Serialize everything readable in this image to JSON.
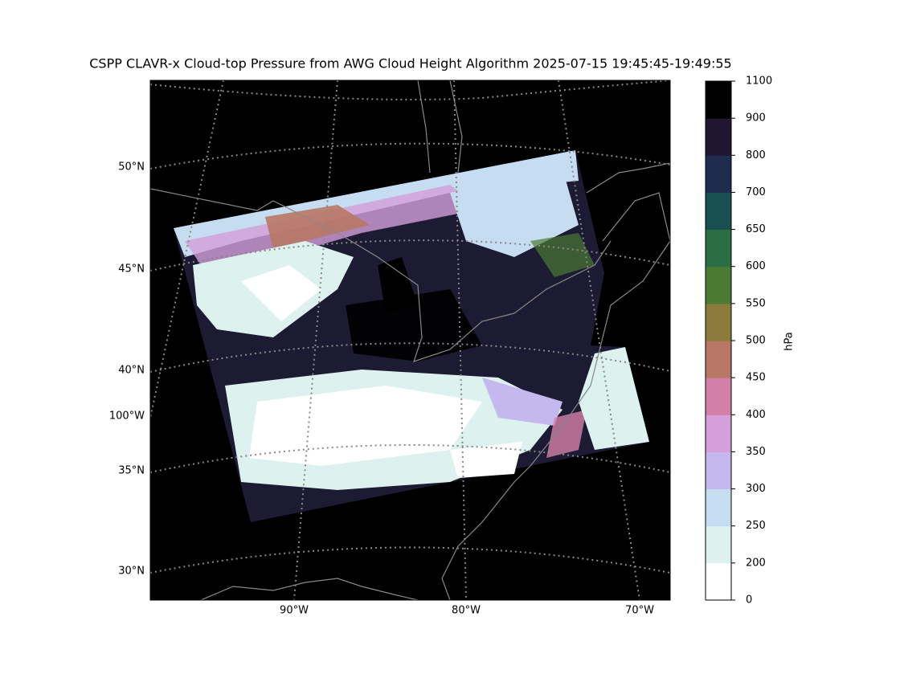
{
  "title": "CSPP CLAVR-x Cloud-top Pressure from AWG Cloud Height Algorithm 2025-07-15 19:45:45-19:49:55",
  "map": {
    "lat_labels": [
      "50°N",
      "45°N",
      "40°N",
      "35°N",
      "30°N"
    ],
    "lon_labels_left": [
      "100°W"
    ],
    "lon_labels_bottom": [
      "90°W",
      "80°W",
      "70°W"
    ]
  },
  "colorbar": {
    "label": "hPa",
    "ticks": [
      0,
      200,
      250,
      300,
      350,
      400,
      450,
      500,
      550,
      600,
      650,
      700,
      800,
      900,
      1100
    ],
    "colors": [
      "#ffffff",
      "#ddf1ee",
      "#c6dcf0",
      "#c4b8ef",
      "#d49fda",
      "#d47fa7",
      "#b87865",
      "#8a7a3c",
      "#4a7a34",
      "#2b6e43",
      "#1a4f4f",
      "#1e2c4e",
      "#211631",
      "#000000"
    ]
  }
}
